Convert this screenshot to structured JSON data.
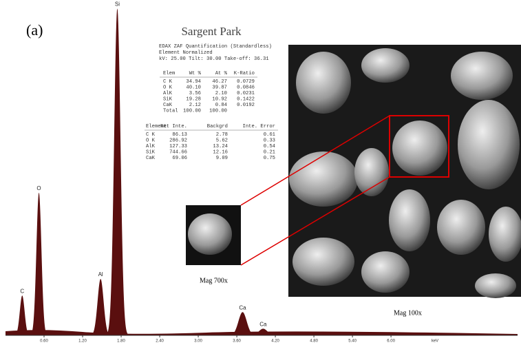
{
  "chart_data": {
    "type": "spectrum",
    "panel_label": "(a)",
    "x": [
      0.26,
      0.52,
      1.48,
      1.74,
      3.69,
      4.01
    ],
    "values": [
      12,
      43,
      17,
      98.5,
      7,
      2
    ],
    "peak_labels": [
      "C",
      "O",
      "Al",
      "Si",
      "Ca",
      "Ca"
    ],
    "color": "#5a0f0f",
    "xlim": [
      0,
      7.97
    ],
    "ylim": [
      0,
      100
    ],
    "xticks": [
      {
        "value": 0.6,
        "label": "0.60"
      },
      {
        "value": 1.2,
        "label": "1.20"
      },
      {
        "value": 1.8,
        "label": "1.80"
      },
      {
        "value": 2.4,
        "label": "2.40"
      },
      {
        "value": 3.0,
        "label": "3.00"
      },
      {
        "value": 3.6,
        "label": "3.60"
      },
      {
        "value": 4.2,
        "label": "4.20"
      },
      {
        "value": 4.8,
        "label": "4.80"
      },
      {
        "value": 5.4,
        "label": "5.40"
      },
      {
        "value": 6.0,
        "label": "6.00"
      }
    ],
    "x_label": "keV"
  },
  "report": {
    "title": "Sargent Park",
    "header": [
      "EDAX ZAF Quantification (Standardless)",
      "Element Normalized",
      "kV: 25.00  Tilt: 30.00  Take-off: 36.31"
    ],
    "table1": {
      "columns": [
        "Elem",
        "Wt %",
        "At %",
        "K-Ratio"
      ],
      "rows": [
        [
          "C K",
          "34.94",
          "46.27",
          "0.0729"
        ],
        [
          "O K",
          "40.10",
          "39.87",
          "0.0846"
        ],
        [
          "AlK",
          "3.56",
          "2.10",
          "0.0231"
        ],
        [
          "SiK",
          "19.28",
          "10.92",
          "0.1422"
        ],
        [
          "CaK",
          "2.12",
          "0.84",
          "0.0192"
        ],
        [
          "Total",
          "100.00",
          "100.00"
        ]
      ]
    },
    "table2": {
      "columns": [
        "Element",
        "Net Inte.",
        "Backgrd",
        "Inte. Error"
      ],
      "rows": [
        [
          "C K",
          "86.13",
          "2.78",
          "0.61"
        ],
        [
          "O K",
          "286.92",
          "5.62",
          "0.33"
        ],
        [
          "AlK",
          "127.33",
          "13.24",
          "0.54"
        ],
        [
          "SiK",
          "744.66",
          "12.16",
          "0.21"
        ],
        [
          "CaK",
          "69.06",
          "9.09",
          "0.75"
        ]
      ]
    }
  },
  "images": {
    "inset_label": "Mag 700x",
    "main_label": "Mag 100x"
  }
}
